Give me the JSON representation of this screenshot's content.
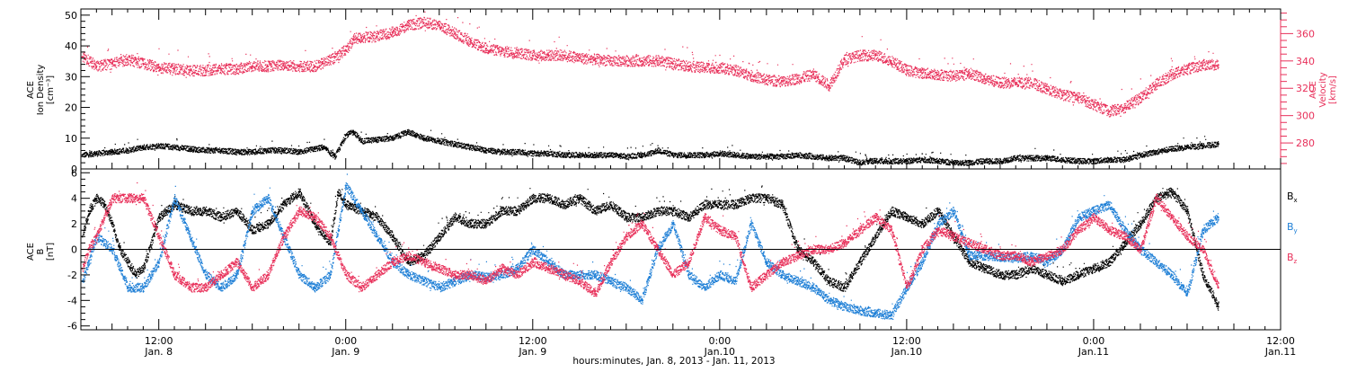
{
  "colors": {
    "black": "#000000",
    "blue": "#1e7fd6",
    "red": "#e8305a"
  },
  "footer": {
    "xaxis_title": "hours:minutes, Jan.  8, 2013 - Jan. 11, 2013"
  },
  "chart_data": [
    {
      "type": "scatter",
      "panel": "top",
      "left_axis": {
        "label_lines": [
          "ACE",
          "Ion Density",
          "[cm⁻³]"
        ],
        "ylim": [
          0,
          52
        ],
        "ticks": [
          0,
          10,
          20,
          30,
          40,
          50
        ],
        "tick_labels": [
          "0",
          "10",
          "20",
          "30",
          "40",
          "50"
        ]
      },
      "right_axis": {
        "label_lines": [
          "ACE",
          "Velocity",
          "[km/s]"
        ],
        "color": "#e8305a",
        "ylim": [
          261,
          378
        ],
        "ticks": [
          280,
          300,
          320,
          340,
          360
        ],
        "tick_labels": [
          "280",
          "300",
          "320",
          "340",
          "360"
        ]
      },
      "x_axis": {
        "unit": "hours since Jan. 8, 2013 00:00",
        "xlim": [
          7,
          84
        ],
        "ticks": [
          12,
          24,
          36,
          48,
          60,
          72,
          84
        ],
        "tick_labels": [
          [
            "12:00",
            "Jan.  8"
          ],
          [
            "0:00",
            "Jan.  9"
          ],
          [
            "12:00",
            "Jan.  9"
          ],
          [
            "0:00",
            "Jan.10"
          ],
          [
            "12:00",
            "Jan.10"
          ],
          [
            "0:00",
            "Jan.11"
          ],
          [
            "12:00",
            "Jan.11"
          ]
        ]
      },
      "series": [
        {
          "name": "Ion Density",
          "axis": "left",
          "color": "#000000",
          "x": [
            7.1,
            8,
            9,
            10,
            11,
            12,
            13,
            14,
            15,
            16,
            17,
            18,
            19,
            20,
            21,
            22,
            22.5,
            23.3,
            24,
            24.5,
            25,
            26,
            27,
            28,
            28.5,
            29,
            30,
            31,
            32,
            33,
            34,
            35,
            36,
            37,
            38,
            39,
            40,
            41,
            42,
            43,
            43.5,
            44,
            45,
            46,
            47,
            48,
            49,
            50,
            51,
            52,
            53,
            54,
            55,
            56,
            57,
            57.5,
            58,
            59,
            60,
            61,
            62,
            63,
            64,
            65,
            66,
            67,
            68,
            69,
            70,
            71,
            72,
            73,
            74,
            75,
            76,
            77,
            78,
            79,
            80
          ],
          "y": [
            4.5,
            5,
            5.5,
            6,
            7,
            7.5,
            7,
            6.5,
            6,
            6,
            5.5,
            5.5,
            6,
            6,
            5.5,
            6.5,
            7,
            4,
            11,
            12,
            9,
            9.5,
            10,
            12,
            11,
            10,
            9,
            8,
            7,
            6,
            5.5,
            5.5,
            5,
            5,
            4.5,
            4.5,
            4.5,
            4.5,
            4,
            4.5,
            5,
            6,
            4.5,
            4.5,
            4.5,
            5,
            4.5,
            4,
            4,
            4,
            4.5,
            4,
            3.5,
            3.5,
            2,
            2.5,
            2.5,
            2.5,
            2.5,
            3,
            2.5,
            2,
            2,
            2.5,
            2.5,
            3.5,
            3.5,
            3.5,
            3,
            2.5,
            2.5,
            3,
            3,
            4.5,
            5.5,
            6.5,
            7,
            7.5,
            8
          ]
        },
        {
          "name": "Velocity",
          "axis": "right",
          "color": "#e8305a",
          "x": [
            7.1,
            8,
            9,
            10,
            11,
            12,
            13,
            14,
            15,
            16,
            17,
            18,
            19,
            20,
            21,
            22,
            22.5,
            23.3,
            24,
            24.5,
            25,
            26,
            27,
            28,
            29,
            30,
            31,
            32,
            33,
            34,
            35,
            36,
            37,
            38,
            39,
            40,
            41,
            42,
            43,
            44,
            45,
            46,
            47,
            48,
            49,
            50,
            51,
            52,
            53,
            54,
            55,
            56,
            57,
            58,
            59,
            60,
            61,
            62,
            63,
            64,
            65,
            66,
            67,
            68,
            69,
            70,
            71,
            72,
            73,
            74,
            75,
            76,
            77,
            78,
            79,
            80
          ],
          "y": [
            343,
            336,
            338,
            341,
            338,
            335,
            334,
            333,
            333,
            334,
            334,
            336,
            336,
            337,
            336,
            336,
            338,
            343,
            348,
            356,
            357,
            358,
            361,
            366,
            368,
            366,
            360,
            354,
            349,
            347,
            346,
            344,
            344,
            344,
            342,
            341,
            340,
            340,
            340,
            340,
            338,
            336,
            335,
            335,
            333,
            329,
            326,
            325,
            327,
            330,
            322,
            341,
            344,
            344,
            340,
            333,
            331,
            330,
            329,
            331,
            327,
            324,
            324,
            324,
            319,
            315,
            313,
            308,
            303,
            306,
            313,
            323,
            330,
            334,
            337,
            337
          ]
        }
      ]
    },
    {
      "type": "scatter",
      "panel": "bottom",
      "left_axis": {
        "label_lines": [
          "ACE",
          "B",
          "[nT]"
        ],
        "ylim": [
          -6.3,
          6.3
        ],
        "ticks": [
          -6,
          -4,
          -2,
          0,
          2,
          4,
          6
        ],
        "tick_labels": [
          "-6",
          "-4",
          "-2",
          "0",
          "2",
          "4",
          "6"
        ]
      },
      "x_axis": {
        "xlim": [
          7,
          84
        ]
      },
      "legend": [
        "Bx",
        "By",
        "Bz"
      ],
      "series": [
        {
          "name": "Bx",
          "color": "#000000",
          "x": [
            7.1,
            7.5,
            8,
            8.5,
            9,
            9.5,
            10,
            10.5,
            11,
            12,
            13,
            14,
            15,
            16,
            17,
            18,
            19,
            20,
            21,
            22,
            23,
            23.5,
            24,
            25,
            26,
            27,
            28,
            29,
            30,
            31,
            32,
            33,
            34,
            35,
            36,
            36.5,
            37,
            38,
            39,
            40,
            41,
            42,
            43,
            44,
            45,
            46,
            47,
            48,
            49,
            50,
            51,
            52,
            53,
            54,
            55,
            56,
            57,
            58,
            59,
            60,
            61,
            62,
            63,
            64,
            65,
            66,
            67,
            68,
            69,
            70,
            71,
            72,
            73,
            74,
            75,
            76,
            77,
            78,
            79,
            80
          ],
          "y": [
            1,
            3,
            4,
            3.5,
            2,
            0,
            -1,
            -2,
            -1.5,
            2.5,
            3.5,
            3,
            3,
            2.5,
            3,
            1.5,
            2,
            3.5,
            4.5,
            2,
            0.5,
            4.5,
            3.5,
            3,
            2.5,
            1,
            -1,
            -0.5,
            1,
            2.5,
            2,
            2,
            3,
            3,
            4,
            4,
            4,
            3.5,
            4,
            3,
            3.5,
            2.5,
            2.5,
            3,
            3,
            2.5,
            3.5,
            3.5,
            3.5,
            4,
            4,
            3.5,
            0,
            -1,
            -2.5,
            -3,
            -1,
            1,
            3,
            2.5,
            2,
            3,
            1,
            -1,
            -1.5,
            -2,
            -2,
            -1.5,
            -2,
            -2.5,
            -2,
            -1.5,
            -1,
            0.5,
            2,
            4,
            4.5,
            3,
            -2,
            -4.5
          ]
        },
        {
          "name": "By",
          "color": "#1e7fd6",
          "x": [
            7.1,
            7.5,
            8,
            9,
            10,
            11,
            12,
            13,
            14,
            15,
            16,
            17,
            18,
            19,
            20,
            21,
            22,
            23,
            24,
            25,
            26,
            27,
            28,
            29,
            30,
            31,
            32,
            33,
            34,
            35,
            36,
            37,
            38,
            39,
            40,
            41,
            42,
            43,
            44,
            45,
            46,
            47,
            48,
            49,
            50,
            51,
            52,
            53,
            54,
            55,
            56,
            57,
            58,
            59,
            60,
            61,
            62,
            63,
            64,
            65,
            66,
            67,
            68,
            69,
            70,
            71,
            72,
            73,
            74,
            75,
            76,
            77,
            78,
            79,
            80
          ],
          "y": [
            -2.5,
            -1,
            1,
            0,
            -3,
            -3,
            -1,
            4,
            1,
            -2,
            -3,
            -2,
            3,
            4,
            1,
            -2,
            -3,
            -2,
            5,
            3,
            1,
            -1,
            -2,
            -2.5,
            -3,
            -2.5,
            -2,
            -2.2,
            -2,
            -1.5,
            0,
            -1,
            -2,
            -2,
            -2,
            -2.5,
            -3,
            -4,
            0,
            2,
            -2,
            -3,
            -2,
            -2.5,
            2,
            -1,
            -2,
            -2.5,
            -3,
            -4,
            -4.5,
            -4.8,
            -5,
            -5.2,
            -3,
            -1,
            2,
            3,
            -0.5,
            -0.5,
            -0.6,
            -0.7,
            -0.5,
            -1,
            0,
            2.5,
            3,
            3.5,
            1.5,
            0,
            -1,
            -2,
            -3.5,
            1.5,
            2.5
          ]
        },
        {
          "name": "Bz",
          "color": "#e8305a",
          "x": [
            7.1,
            7.5,
            8,
            9,
            10,
            11,
            12,
            13,
            14,
            15,
            16,
            17,
            18,
            19,
            20,
            21,
            22,
            23,
            24,
            25,
            26,
            27,
            28,
            29,
            30,
            31,
            32,
            33,
            34,
            35,
            36,
            37,
            38,
            39,
            40,
            41,
            42,
            43,
            44,
            45,
            46,
            47,
            48,
            49,
            50,
            51,
            52,
            53,
            54,
            55,
            56,
            57,
            58,
            59,
            60,
            61,
            62,
            63,
            64,
            65,
            66,
            67,
            68,
            69,
            70,
            71,
            72,
            73,
            74,
            75,
            76,
            77,
            78,
            79,
            80
          ],
          "y": [
            -1.5,
            0,
            1,
            4,
            4,
            4,
            1,
            -2,
            -3,
            -3,
            -2,
            -1,
            -3,
            -2,
            1,
            3,
            2.5,
            1,
            -2,
            -3,
            -2,
            -1,
            -0.5,
            -1,
            -1.5,
            -2,
            -2,
            -2.5,
            -1.5,
            -2,
            -1,
            -1.5,
            -2,
            -2.5,
            -3.5,
            -1,
            1,
            2,
            0,
            -2,
            -1,
            2.5,
            1.5,
            1,
            -3,
            -2,
            -1,
            -0.5,
            0,
            0,
            0.5,
            1.5,
            2.5,
            1.5,
            -3,
            0,
            1.5,
            1,
            0.5,
            0,
            -0.5,
            -0.5,
            -1,
            -0.5,
            0,
            1.5,
            2.5,
            1.5,
            1,
            0,
            4,
            2.5,
            1,
            0,
            -3
          ]
        }
      ]
    }
  ]
}
